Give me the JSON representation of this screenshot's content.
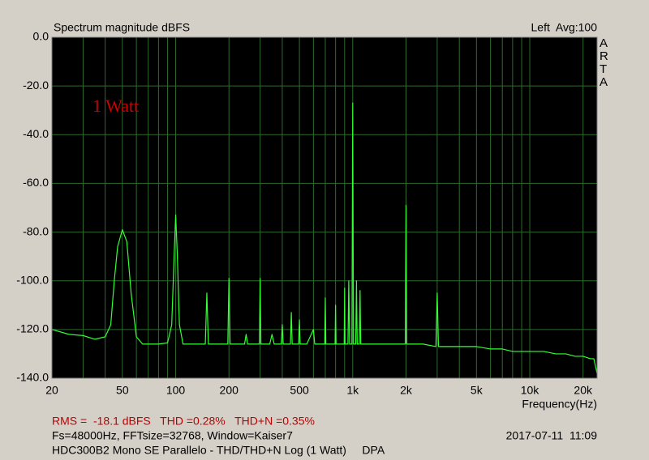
{
  "chart_data": {
    "type": "line",
    "title": "Spectrum magnitude dBFS",
    "channel_info": "Left  Avg:100",
    "brand": "ARTA",
    "annotation": "1 Watt",
    "xlabel": "Frequency(Hz)",
    "stats": "RMS =  -18.1 dBFS   THD =0.28%   THD+N =0.35%",
    "settings": "Fs=48000Hz, FFTsize=32768, Window=Kaiser7",
    "timestamp": "2017-07-11  11:09",
    "caption": "HDC300B2 Mono SE Parallelo - THD/THD+N Log (1 Watt)     DPA",
    "xscale": "log",
    "grid": true,
    "color": "#33ff33",
    "xlim": [
      20,
      24000
    ],
    "ylim": [
      -140,
      0
    ],
    "xticks": [
      20,
      50,
      100,
      200,
      500,
      {
        "value": 1000,
        "label": "1k"
      },
      {
        "value": 2000,
        "label": "2k"
      },
      {
        "value": 5000,
        "label": "5k"
      },
      {
        "value": 10000,
        "label": "10k"
      },
      {
        "value": 20000,
        "label": "20k"
      }
    ],
    "x_minor_grid": [
      30,
      40,
      60,
      70,
      80,
      90,
      300,
      400,
      600,
      700,
      800,
      900,
      3000,
      4000,
      6000,
      7000,
      8000,
      9000
    ],
    "yticks": [
      {
        "value": 0,
        "label": "0.0"
      },
      {
        "value": -20,
        "label": "-20.0"
      },
      {
        "value": -40,
        "label": "-40.0"
      },
      {
        "value": -60,
        "label": "-60.0"
      },
      {
        "value": -80,
        "label": "-80.0"
      },
      {
        "value": -100,
        "label": "-100.0"
      },
      {
        "value": -120,
        "label": "-120.0"
      },
      {
        "value": -140,
        "label": "-140.0"
      }
    ],
    "x": [
      20,
      25,
      30,
      35,
      40,
      43,
      45,
      47,
      50,
      53,
      56,
      60,
      65,
      70,
      80,
      90,
      95,
      98,
      100,
      102,
      105,
      110,
      120,
      140,
      147,
      150,
      153,
      160,
      190,
      197,
      200,
      203,
      220,
      245,
      250,
      255,
      290,
      297,
      300,
      303,
      340,
      350,
      360,
      395,
      400,
      405,
      445,
      450,
      455,
      495,
      500,
      505,
      550,
      600,
      610,
      650,
      695,
      700,
      705,
      750,
      795,
      800,
      805,
      850,
      895,
      900,
      905,
      940,
      950,
      960,
      990,
      1000,
      1010,
      1040,
      1050,
      1060,
      1090,
      1100,
      1110,
      1200,
      1500,
      1900,
      1980,
      2000,
      2020,
      2500,
      2950,
      3000,
      3050,
      3500,
      4000,
      5000,
      6000,
      7000,
      8000,
      9000,
      10000,
      12000,
      14000,
      16000,
      18000,
      20000,
      22000,
      23000,
      24000
    ],
    "values": [
      -120,
      -122,
      -122.5,
      -124,
      -123,
      -118,
      -100,
      -86,
      -79,
      -84,
      -105,
      -123,
      -126,
      -126,
      -126,
      -125.5,
      -118,
      -90,
      -73,
      -88,
      -118,
      -126,
      -126,
      -126,
      -126,
      -105,
      -126,
      -126,
      -126,
      -126,
      -99,
      -126,
      -126,
      -126,
      -122,
      -126,
      -126,
      -126,
      -99,
      -126,
      -126,
      -122,
      -126,
      -126,
      -118,
      -126,
      -126,
      -113,
      -126,
      -126,
      -116,
      -126,
      -126,
      -120,
      -126,
      -126,
      -126,
      -107,
      -126,
      -126,
      -126,
      -110,
      -126,
      -126,
      -126,
      -103,
      -126,
      -126,
      -100,
      -126,
      -126,
      -27,
      -126,
      -126,
      -100,
      -126,
      -126,
      -104,
      -126,
      -126,
      -126,
      -126,
      -126,
      -69,
      -126,
      -126,
      -127,
      -105,
      -127,
      -127,
      -127,
      -127,
      -128,
      -128,
      -129,
      -129,
      -129,
      -129,
      -130,
      -130,
      -131,
      -131,
      -132,
      -132,
      -138
    ]
  }
}
